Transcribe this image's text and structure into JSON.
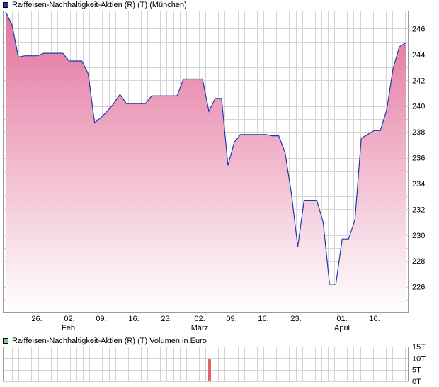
{
  "chart_data": [
    {
      "type": "area",
      "legend": "Raiffeisen-Nachhaltigkeit-Aktien (R) (T) (München)",
      "color": "#1f3aa8",
      "fill_top": "#e2729c",
      "fill_bottom": "#ffffff",
      "ylim": [
        224,
        247.4
      ],
      "yticks": [
        226,
        228,
        230,
        232,
        234,
        236,
        238,
        240,
        242,
        244,
        246
      ],
      "x_tick_labels": [
        "26.",
        "02.",
        "09.",
        "16.",
        "23.",
        "02.",
        "09.",
        "16.",
        "23.",
        "01.",
        "10."
      ],
      "x_month_labels": [
        "Feb.",
        "März",
        "April"
      ],
      "grid": true,
      "values": [
        247.3,
        246.3,
        243.8,
        243.9,
        243.9,
        243.9,
        244.1,
        244.1,
        244.1,
        244.1,
        243.5,
        243.5,
        243.5,
        242.5,
        238.7,
        239.1,
        239.6,
        240.2,
        240.9,
        240.2,
        240.2,
        240.2,
        240.2,
        240.8,
        240.8,
        240.8,
        240.8,
        240.8,
        242.1,
        242.1,
        242.1,
        242.1,
        239.6,
        240.6,
        240.6,
        235.4,
        237.2,
        237.8,
        237.8,
        237.8,
        237.8,
        237.8,
        237.7,
        237.7,
        236.4,
        233.2,
        229.1,
        232.7,
        232.7,
        232.7,
        231.0,
        226.2,
        226.2,
        229.7,
        229.7,
        231.2,
        237.5,
        237.8,
        238.1,
        238.1,
        239.7,
        242.9,
        244.6,
        244.9
      ]
    },
    {
      "type": "bar",
      "legend": "Raiffeisen-Nachhaltigkeit-Aktien (R) (T) Volumen in Euro",
      "color": "#e06666",
      "yticks": [
        "15T",
        "10T",
        "5T",
        "0T"
      ],
      "ylim": [
        0,
        15
      ],
      "bars": [
        {
          "index": 32,
          "value": 9.5
        }
      ]
    }
  ]
}
